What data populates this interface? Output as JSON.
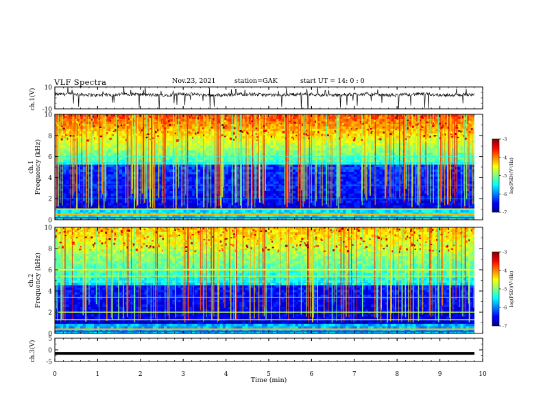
{
  "header": {
    "title": "VLF Spectra",
    "date": "Nov.23, 2021",
    "station": "station=GAK",
    "start": "start UT =  14: 0  : 0"
  },
  "chart_data": [
    {
      "type": "line",
      "panel": "ch1-waveform",
      "ylabel": "ch.1(V)",
      "ylim": [
        -10,
        10
      ],
      "yticks": [
        "10",
        "-10"
      ],
      "xlim": [
        0,
        10
      ],
      "series": [
        {
          "values": [
            3,
            2,
            4,
            1,
            3,
            2,
            3,
            4,
            2,
            3,
            1,
            2,
            3,
            4,
            3,
            2,
            3,
            1,
            2,
            3
          ]
        }
      ]
    },
    {
      "type": "heatmap",
      "panel": "ch1-spectrogram",
      "ylabel": "Frequency (kHz)",
      "channel_label": "ch.1",
      "ylim": [
        0,
        10
      ],
      "yticks": [
        "0",
        "2",
        "4",
        "6",
        "8",
        "10"
      ],
      "xlim": [
        0,
        10
      ],
      "colorbar": {
        "label": "log(PSD)(V²/Hz)",
        "range": [
          -7,
          -3
        ],
        "ticks": [
          "-3",
          "-4",
          "-5",
          "-6",
          "-7"
        ]
      }
    },
    {
      "type": "heatmap",
      "panel": "ch2-spectrogram",
      "ylabel": "Frequency (kHz)",
      "channel_label": "ch.2",
      "ylim": [
        0,
        10
      ],
      "yticks": [
        "0",
        "2",
        "4",
        "6",
        "8",
        "10"
      ],
      "xlim": [
        0,
        10
      ],
      "colorbar": {
        "label": "log(PSD)(V²/Hz)",
        "range": [
          -7,
          -3
        ],
        "ticks": [
          "-3",
          "-4",
          "-5",
          "-6",
          "-7"
        ]
      }
    },
    {
      "type": "line",
      "panel": "ch3-waveform",
      "ylabel": "ch.3(V)",
      "ylim": [
        -5,
        5
      ],
      "yticks": [
        "5",
        "0",
        "-5"
      ],
      "xlim": [
        0,
        10
      ],
      "xlabel": "Time (min)",
      "xticks": [
        "0",
        "1",
        "2",
        "3",
        "4",
        "5",
        "6",
        "7",
        "8",
        "9",
        "10"
      ],
      "series": [
        {
          "values": [
            -1.5,
            -1.5
          ]
        }
      ]
    }
  ],
  "colors": {
    "jet": [
      "#00008f",
      "#0000ff",
      "#0080ff",
      "#00ffff",
      "#80ff80",
      "#ffff00",
      "#ff8000",
      "#ff0000",
      "#800000"
    ]
  }
}
